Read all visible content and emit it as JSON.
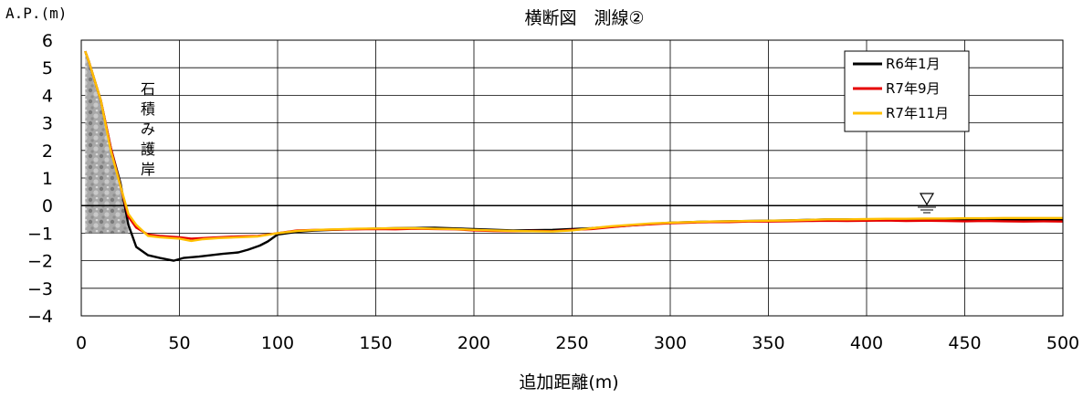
{
  "chart_data": {
    "type": "line",
    "title": "横断図　測線②",
    "xlabel": "追加距離(m)",
    "ylabel": "A.P.(m)",
    "xlim": [
      0,
      500
    ],
    "ylim": [
      -4,
      6
    ],
    "xticks": [
      "0",
      "50",
      "100",
      "150",
      "200",
      "250",
      "300",
      "350",
      "400",
      "450",
      "500"
    ],
    "yticks": [
      "6",
      "5",
      "4",
      "3",
      "2",
      "1",
      "0",
      "−1",
      "−2",
      "−3",
      "−4"
    ],
    "grid": true,
    "legend_position": "top-right",
    "annotation": "石積み護岸",
    "series": [
      {
        "name": "R6年1月",
        "color": "#000000",
        "x": [
          2,
          4,
          10,
          15,
          20,
          24,
          28,
          34,
          40,
          47,
          52,
          60,
          66,
          72,
          80,
          85,
          91,
          95,
          100,
          110,
          120,
          140,
          160,
          180,
          200,
          220,
          240,
          260,
          280,
          300,
          320,
          340,
          360,
          380,
          400,
          420,
          440,
          460,
          480,
          500
        ],
        "y": [
          5.6,
          5.2,
          3.8,
          2.1,
          0.8,
          -0.7,
          -1.5,
          -1.8,
          -1.9,
          -2.0,
          -1.9,
          -1.85,
          -1.8,
          -1.75,
          -1.7,
          -1.6,
          -1.45,
          -1.3,
          -1.05,
          -0.95,
          -0.9,
          -0.85,
          -0.82,
          -0.8,
          -0.85,
          -0.9,
          -0.88,
          -0.82,
          -0.72,
          -0.62,
          -0.58,
          -0.56,
          -0.54,
          -0.5,
          -0.5,
          -0.5,
          -0.5,
          -0.5,
          -0.52,
          -0.5
        ]
      },
      {
        "name": "R7年9月",
        "color": "#e60000",
        "x": [
          2,
          4,
          10,
          15,
          20,
          24,
          28,
          34,
          40,
          50,
          56,
          62,
          70,
          80,
          90,
          100,
          110,
          120,
          130,
          140,
          150,
          160,
          170,
          180,
          190,
          200,
          210,
          220,
          230,
          240,
          250,
          260,
          270,
          280,
          290,
          300,
          310,
          320,
          330,
          340,
          350,
          360,
          370,
          380,
          390,
          400,
          410,
          420,
          430,
          440,
          450,
          460,
          470,
          480,
          490,
          500
        ],
        "y": [
          5.6,
          5.2,
          3.8,
          2.1,
          0.7,
          -0.4,
          -0.8,
          -1.05,
          -1.1,
          -1.15,
          -1.2,
          -1.18,
          -1.15,
          -1.12,
          -1.1,
          -1.0,
          -0.9,
          -0.88,
          -0.87,
          -0.86,
          -0.85,
          -0.86,
          -0.84,
          -0.85,
          -0.86,
          -0.9,
          -0.92,
          -0.93,
          -0.92,
          -0.93,
          -0.88,
          -0.85,
          -0.78,
          -0.72,
          -0.68,
          -0.64,
          -0.62,
          -0.6,
          -0.6,
          -0.58,
          -0.58,
          -0.57,
          -0.56,
          -0.55,
          -0.56,
          -0.55,
          -0.54,
          -0.56,
          -0.55,
          -0.56,
          -0.57,
          -0.56,
          -0.57,
          -0.58,
          -0.57,
          -0.58
        ]
      },
      {
        "name": "R7年11月",
        "color": "#ffc000",
        "x": [
          2,
          4,
          10,
          15,
          20,
          24,
          28,
          34,
          40,
          50,
          56,
          62,
          70,
          80,
          90,
          100,
          110,
          120,
          130,
          140,
          150,
          160,
          170,
          180,
          190,
          200,
          210,
          220,
          230,
          240,
          250,
          260,
          270,
          280,
          290,
          300,
          310,
          320,
          330,
          340,
          350,
          360,
          370,
          380,
          390,
          400,
          410,
          420,
          430,
          440,
          450,
          460,
          470,
          480,
          490,
          500
        ],
        "y": [
          5.6,
          5.2,
          3.8,
          2.0,
          0.7,
          -0.3,
          -0.7,
          -1.1,
          -1.15,
          -1.2,
          -1.28,
          -1.22,
          -1.18,
          -1.15,
          -1.12,
          -1.0,
          -0.92,
          -0.88,
          -0.86,
          -0.84,
          -0.83,
          -0.82,
          -0.82,
          -0.84,
          -0.85,
          -0.88,
          -0.9,
          -0.92,
          -0.93,
          -0.94,
          -0.9,
          -0.82,
          -0.75,
          -0.7,
          -0.65,
          -0.62,
          -0.6,
          -0.58,
          -0.57,
          -0.56,
          -0.55,
          -0.54,
          -0.52,
          -0.5,
          -0.5,
          -0.49,
          -0.48,
          -0.48,
          -0.47,
          -0.47,
          -0.46,
          -0.46,
          -0.45,
          -0.45,
          -0.45,
          -0.45
        ]
      }
    ]
  }
}
